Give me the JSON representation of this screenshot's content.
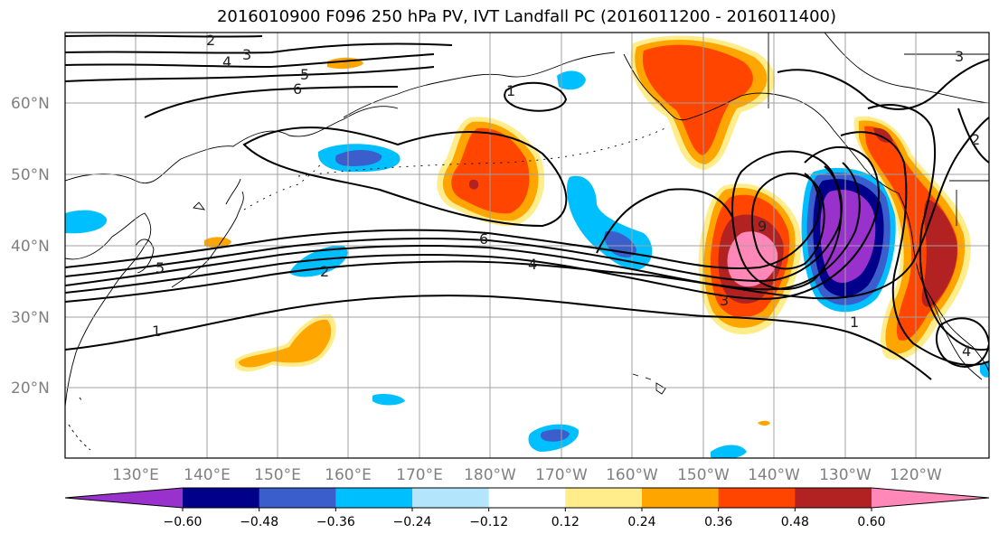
{
  "title": "2016010900 F096 250 hPa PV, IVT Landfall PC (2016011200 - 2016011400)",
  "lat_labels": [
    "60°N",
    "50°N",
    "40°N",
    "30°N",
    "20°N"
  ],
  "lon_labels": [
    "130°E",
    "140°E",
    "150°E",
    "160°E",
    "170°E",
    "180°W",
    "170°W",
    "160°W",
    "150°W",
    "140°W",
    "130°W",
    "120°W"
  ],
  "contour_labels": [
    "2",
    "3",
    "4",
    "5",
    "6",
    "1",
    "6",
    "4",
    "5",
    "2",
    "1",
    "9",
    "3",
    "1",
    "2",
    "3",
    "4"
  ],
  "colorbar": {
    "colors": [
      "#9932cc",
      "#00008b",
      "#3a5fcd",
      "#00bfff",
      "#b3e5fc",
      "#ffffff",
      "#ffec8b",
      "#ffa500",
      "#ff4500",
      "#b22222",
      "#ff88b8"
    ],
    "tick_labels": [
      "−0.60",
      "−0.48",
      "−0.36",
      "−0.24",
      "−0.12",
      "0.12",
      "0.24",
      "0.36",
      "0.48",
      "0.60"
    ]
  },
  "fill_colors": {
    "neg_strong": "#9932cc",
    "neg_dark": "#00008b",
    "neg_mid": "#3a5fcd",
    "neg_light": "#00bfff",
    "pos_light": "#ffec8b",
    "pos_mid": "#ffa500",
    "pos_strong": "#ff4500",
    "pos_dark": "#b22222",
    "pos_max": "#ff88b8"
  }
}
